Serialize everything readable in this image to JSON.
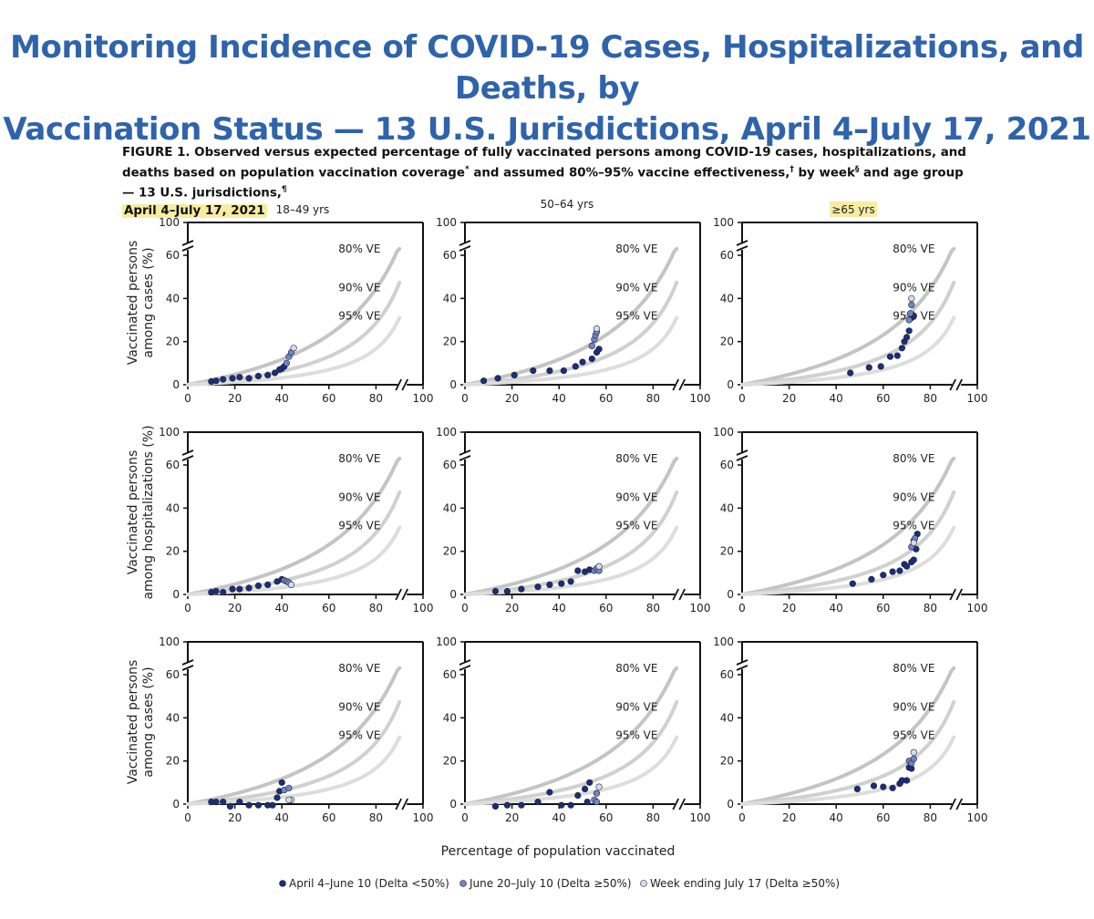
{
  "headline": {
    "line1": "Monitoring Incidence of COVID-19 Cases, Hospitalizations, and Deaths, by",
    "line2": "Vaccination Status — 13 U.S. Jurisdictions, April 4–July 17, 2021"
  },
  "caption": {
    "part1": "FIGURE 1. Observed versus expected percentage of fully vaccinated persons among COVID-19 cases, hospitalizations, and deaths based on population vaccination coverage",
    "mark1": "*",
    "part2": " and assumed 80%–95% vaccine effectiveness,",
    "mark2": "†",
    "part3": " by week",
    "mark3": "§",
    "part4": " and age group — 13 U.S. jurisdictions,",
    "mark4": "¶",
    "dates": "April 4–July 17, 2021"
  },
  "column_titles": [
    "18–49 yrs",
    "50–64 yrs",
    "≥65 yrs"
  ],
  "row_ylabels": [
    [
      "Vaccinated persons",
      "among cases (%)"
    ],
    [
      "Vaccinated persons",
      "among hospitalizations (%)"
    ],
    [
      "Vaccinated persons",
      "among cases (%)"
    ]
  ],
  "xlabel": "Percentage of population vaccinated",
  "colors": {
    "headline": "#2f63aa",
    "highlight": "#f7eca1",
    "series_dark": "#1a2e7a",
    "series_mid": "#6f86c6",
    "series_light": "#d2dcf0",
    "ve80": "#c4c4c4",
    "ve90": "#d0d0d0",
    "ve95": "#dddddd"
  },
  "chart_data": {
    "type": "scatter",
    "layout": "3x3 small multiples",
    "axes": {
      "x_ticks": [
        0,
        20,
        40,
        60,
        80,
        100
      ],
      "y_ticks": [
        0,
        20,
        40,
        60,
        100
      ],
      "y_axis_break_between": [
        60,
        100
      ],
      "x_axis_break_between": [
        90,
        100
      ],
      "xlim": [
        0,
        100
      ],
      "ylim": [
        0,
        100
      ]
    },
    "ve_curves": [
      {
        "label": "80% VE",
        "ve": 0.8
      },
      {
        "label": "90% VE",
        "ve": 0.9
      },
      {
        "label": "95% VE",
        "ve": 0.95
      }
    ],
    "legend": {
      "placement": "bottom-center",
      "items": [
        {
          "label": "April 4–June 10 (Delta <50%)",
          "key": "dark"
        },
        {
          "label": "June 20–July 10 (Delta ≥50%)",
          "key": "mid"
        },
        {
          "label": "Week ending July 17 (Delta ≥50%)",
          "key": "light"
        }
      ]
    },
    "panels": [
      {
        "row": 0,
        "col": 0,
        "points": [
          {
            "x": 10,
            "y": 1.5,
            "s": "dark"
          },
          {
            "x": 12,
            "y": 1.8,
            "s": "dark"
          },
          {
            "x": 15,
            "y": 2.5,
            "s": "dark"
          },
          {
            "x": 19,
            "y": 3,
            "s": "dark"
          },
          {
            "x": 22,
            "y": 3.5,
            "s": "dark"
          },
          {
            "x": 26,
            "y": 3,
            "s": "dark"
          },
          {
            "x": 30,
            "y": 4,
            "s": "dark"
          },
          {
            "x": 34,
            "y": 4.5,
            "s": "dark"
          },
          {
            "x": 37,
            "y": 5.5,
            "s": "dark"
          },
          {
            "x": 39,
            "y": 7,
            "s": "dark"
          },
          {
            "x": 40,
            "y": 7.5,
            "s": "dark"
          },
          {
            "x": 41,
            "y": 8.5,
            "s": "dark"
          },
          {
            "x": 42,
            "y": 10,
            "s": "mid"
          },
          {
            "x": 43,
            "y": 13,
            "s": "mid"
          },
          {
            "x": 44,
            "y": 15,
            "s": "mid"
          },
          {
            "x": 45,
            "y": 17,
            "s": "light"
          }
        ]
      },
      {
        "row": 0,
        "col": 1,
        "points": [
          {
            "x": 8,
            "y": 1.8,
            "s": "dark"
          },
          {
            "x": 14,
            "y": 3,
            "s": "dark"
          },
          {
            "x": 21,
            "y": 4.5,
            "s": "dark"
          },
          {
            "x": 29,
            "y": 6.5,
            "s": "dark"
          },
          {
            "x": 36,
            "y": 6.5,
            "s": "dark"
          },
          {
            "x": 42,
            "y": 6.5,
            "s": "dark"
          },
          {
            "x": 47,
            "y": 8.5,
            "s": "dark"
          },
          {
            "x": 50,
            "y": 10.5,
            "s": "dark"
          },
          {
            "x": 54,
            "y": 12,
            "s": "dark"
          },
          {
            "x": 56,
            "y": 15,
            "s": "dark"
          },
          {
            "x": 57,
            "y": 16.5,
            "s": "dark"
          },
          {
            "x": 54,
            "y": 18,
            "s": "mid"
          },
          {
            "x": 55,
            "y": 21,
            "s": "mid"
          },
          {
            "x": 55.5,
            "y": 23,
            "s": "mid"
          },
          {
            "x": 56,
            "y": 24.5,
            "s": "mid"
          },
          {
            "x": 56,
            "y": 26,
            "s": "light"
          }
        ]
      },
      {
        "row": 0,
        "col": 2,
        "points": [
          {
            "x": 46,
            "y": 5.5,
            "s": "dark"
          },
          {
            "x": 54,
            "y": 8,
            "s": "dark"
          },
          {
            "x": 59,
            "y": 8.5,
            "s": "dark"
          },
          {
            "x": 63,
            "y": 13,
            "s": "dark"
          },
          {
            "x": 66,
            "y": 13.5,
            "s": "dark"
          },
          {
            "x": 68,
            "y": 17,
            "s": "dark"
          },
          {
            "x": 69,
            "y": 20,
            "s": "dark"
          },
          {
            "x": 70,
            "y": 22,
            "s": "dark"
          },
          {
            "x": 71,
            "y": 25,
            "s": "dark"
          },
          {
            "x": 72,
            "y": 31,
            "s": "dark"
          },
          {
            "x": 73,
            "y": 32,
            "s": "dark"
          },
          {
            "x": 71,
            "y": 30,
            "s": "mid"
          },
          {
            "x": 71.5,
            "y": 33,
            "s": "mid"
          },
          {
            "x": 72,
            "y": 37,
            "s": "mid"
          },
          {
            "x": 72,
            "y": 40,
            "s": "light"
          }
        ]
      },
      {
        "row": 1,
        "col": 0,
        "points": [
          {
            "x": 10,
            "y": 1,
            "s": "dark"
          },
          {
            "x": 12,
            "y": 1.5,
            "s": "dark"
          },
          {
            "x": 15,
            "y": 1,
            "s": "dark"
          },
          {
            "x": 19,
            "y": 2.5,
            "s": "dark"
          },
          {
            "x": 22,
            "y": 2.5,
            "s": "dark"
          },
          {
            "x": 26,
            "y": 3,
            "s": "dark"
          },
          {
            "x": 30,
            "y": 4,
            "s": "dark"
          },
          {
            "x": 34,
            "y": 4.5,
            "s": "dark"
          },
          {
            "x": 38,
            "y": 6,
            "s": "dark"
          },
          {
            "x": 40,
            "y": 7,
            "s": "dark"
          },
          {
            "x": 41,
            "y": 6.5,
            "s": "mid"
          },
          {
            "x": 42,
            "y": 6,
            "s": "mid"
          },
          {
            "x": 43,
            "y": 5.5,
            "s": "mid"
          },
          {
            "x": 44,
            "y": 4.5,
            "s": "light"
          }
        ]
      },
      {
        "row": 1,
        "col": 1,
        "points": [
          {
            "x": 13,
            "y": 1.5,
            "s": "dark"
          },
          {
            "x": 18,
            "y": 1.5,
            "s": "dark"
          },
          {
            "x": 24,
            "y": 2.5,
            "s": "dark"
          },
          {
            "x": 31,
            "y": 3.5,
            "s": "dark"
          },
          {
            "x": 36,
            "y": 4.5,
            "s": "dark"
          },
          {
            "x": 41,
            "y": 5,
            "s": "dark"
          },
          {
            "x": 45,
            "y": 6,
            "s": "dark"
          },
          {
            "x": 48,
            "y": 11,
            "s": "dark"
          },
          {
            "x": 51,
            "y": 10.5,
            "s": "dark"
          },
          {
            "x": 53,
            "y": 11.5,
            "s": "dark"
          },
          {
            "x": 55,
            "y": 11,
            "s": "mid"
          },
          {
            "x": 56,
            "y": 12,
            "s": "mid"
          },
          {
            "x": 57,
            "y": 11,
            "s": "mid"
          },
          {
            "x": 57,
            "y": 13,
            "s": "light"
          }
        ]
      },
      {
        "row": 1,
        "col": 2,
        "points": [
          {
            "x": 47,
            "y": 5,
            "s": "dark"
          },
          {
            "x": 55,
            "y": 7,
            "s": "dark"
          },
          {
            "x": 60,
            "y": 9,
            "s": "dark"
          },
          {
            "x": 64,
            "y": 10.5,
            "s": "dark"
          },
          {
            "x": 67,
            "y": 11,
            "s": "dark"
          },
          {
            "x": 69,
            "y": 14,
            "s": "dark"
          },
          {
            "x": 70,
            "y": 13,
            "s": "dark"
          },
          {
            "x": 72,
            "y": 15,
            "s": "dark"
          },
          {
            "x": 73,
            "y": 16,
            "s": "dark"
          },
          {
            "x": 74,
            "y": 21,
            "s": "dark"
          },
          {
            "x": 74.5,
            "y": 28,
            "s": "dark"
          },
          {
            "x": 72,
            "y": 22,
            "s": "mid"
          },
          {
            "x": 73,
            "y": 25,
            "s": "mid"
          },
          {
            "x": 73.5,
            "y": 26,
            "s": "mid"
          },
          {
            "x": 73,
            "y": 24,
            "s": "light"
          }
        ]
      },
      {
        "row": 2,
        "col": 0,
        "points": [
          {
            "x": 10,
            "y": 1,
            "s": "dark"
          },
          {
            "x": 12,
            "y": 1,
            "s": "dark"
          },
          {
            "x": 15,
            "y": 1,
            "s": "dark"
          },
          {
            "x": 18,
            "y": -1,
            "s": "dark"
          },
          {
            "x": 22,
            "y": 1,
            "s": "dark"
          },
          {
            "x": 26,
            "y": -0.5,
            "s": "dark"
          },
          {
            "x": 30,
            "y": -0.5,
            "s": "dark"
          },
          {
            "x": 34,
            "y": -0.5,
            "s": "dark"
          },
          {
            "x": 36,
            "y": -0.5,
            "s": "dark"
          },
          {
            "x": 38,
            "y": 3,
            "s": "dark"
          },
          {
            "x": 39,
            "y": 6,
            "s": "dark"
          },
          {
            "x": 40,
            "y": 10,
            "s": "dark"
          },
          {
            "x": 41,
            "y": 6.5,
            "s": "mid"
          },
          {
            "x": 43,
            "y": 7.5,
            "s": "mid"
          },
          {
            "x": 44,
            "y": 2,
            "s": "light"
          },
          {
            "x": 43,
            "y": 2,
            "s": "light"
          }
        ]
      },
      {
        "row": 2,
        "col": 1,
        "points": [
          {
            "x": 13,
            "y": -1,
            "s": "dark"
          },
          {
            "x": 18,
            "y": -0.5,
            "s": "dark"
          },
          {
            "x": 24,
            "y": -0.5,
            "s": "dark"
          },
          {
            "x": 31,
            "y": 1,
            "s": "dark"
          },
          {
            "x": 36,
            "y": 5.5,
            "s": "dark"
          },
          {
            "x": 41,
            "y": -0.5,
            "s": "dark"
          },
          {
            "x": 45,
            "y": -0.5,
            "s": "dark"
          },
          {
            "x": 48,
            "y": 4,
            "s": "dark"
          },
          {
            "x": 51,
            "y": 7,
            "s": "dark"
          },
          {
            "x": 53,
            "y": 10,
            "s": "dark"
          },
          {
            "x": 52,
            "y": 1,
            "s": "dark"
          },
          {
            "x": 55,
            "y": 2,
            "s": "mid"
          },
          {
            "x": 56,
            "y": 5,
            "s": "mid"
          },
          {
            "x": 56,
            "y": 1,
            "s": "mid"
          },
          {
            "x": 57,
            "y": 8,
            "s": "light"
          }
        ]
      },
      {
        "row": 2,
        "col": 2,
        "points": [
          {
            "x": 49,
            "y": 7,
            "s": "dark"
          },
          {
            "x": 56,
            "y": 8.5,
            "s": "dark"
          },
          {
            "x": 60,
            "y": 8,
            "s": "dark"
          },
          {
            "x": 64,
            "y": 7.5,
            "s": "dark"
          },
          {
            "x": 67,
            "y": 9.5,
            "s": "dark"
          },
          {
            "x": 68,
            "y": 11,
            "s": "dark"
          },
          {
            "x": 70,
            "y": 11,
            "s": "dark"
          },
          {
            "x": 71,
            "y": 17,
            "s": "dark"
          },
          {
            "x": 72,
            "y": 16.5,
            "s": "dark"
          },
          {
            "x": 71,
            "y": 20,
            "s": "mid"
          },
          {
            "x": 72,
            "y": 19,
            "s": "mid"
          },
          {
            "x": 73,
            "y": 21,
            "s": "mid"
          },
          {
            "x": 73,
            "y": 24,
            "s": "light"
          }
        ]
      }
    ]
  }
}
